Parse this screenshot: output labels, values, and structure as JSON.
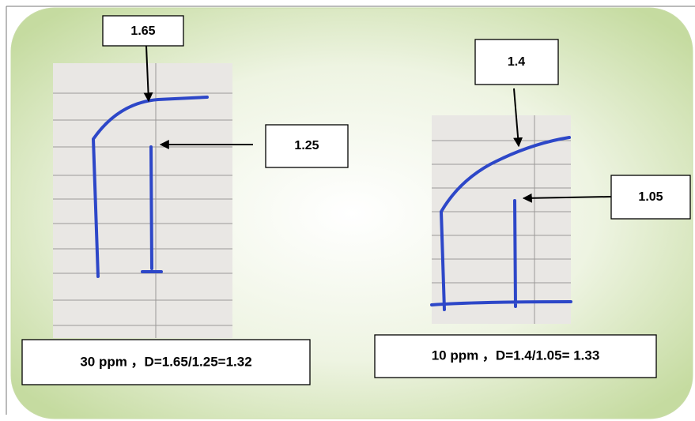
{
  "panels": [
    {
      "top_label": "1.65",
      "mid_label": "1.25",
      "caption": "30 ppm ，D=1.65/1.25=1.32"
    },
    {
      "top_label": "1.4",
      "mid_label": "1.05",
      "caption": "10 ppm ，D=1.4/1.05= 1.33"
    }
  ]
}
